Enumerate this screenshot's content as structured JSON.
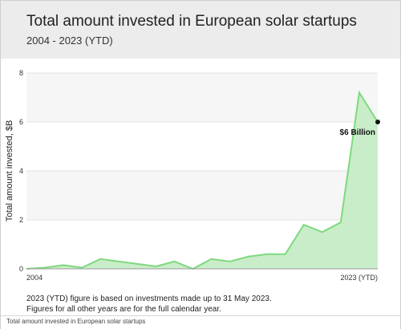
{
  "header": {
    "title": "Total amount invested in European solar startups",
    "subtitle": "2004 - 2023 (YTD)"
  },
  "notes": {
    "line1": "2023 (YTD) figure is based on investments made up to 31 May 2023.",
    "line2": "Figures for all other years are for the full calendar year."
  },
  "caption": "Total amount invested in European solar startups",
  "colors": {
    "area_fill": "#c9edc9",
    "line": "#7ed97e",
    "header_bg": "#ececec",
    "band_light": "#f6f6f6",
    "endpoint": "#111111"
  },
  "chart_data": {
    "type": "area",
    "title": "Total amount invested in European solar startups",
    "subtitle": "2004 - 2023 (YTD)",
    "ylabel": "Total amount invested, $B",
    "xlabel": "",
    "ylim": [
      0,
      8
    ],
    "yticks": [
      0,
      2,
      4,
      6,
      8
    ],
    "x_tick_labels": [
      "2004",
      "2023 (YTD)"
    ],
    "grid": true,
    "series": [
      {
        "x": [
          2004,
          2005,
          2006,
          2007,
          2008,
          2009,
          2010,
          2011,
          2012,
          2013,
          2014,
          2015,
          2016,
          2017,
          2018,
          2019,
          2020,
          2021,
          2022,
          2023
        ],
        "values": [
          0.0,
          0.05,
          0.15,
          0.05,
          0.4,
          0.3,
          0.2,
          0.1,
          0.3,
          0.0,
          0.4,
          0.3,
          0.5,
          0.6,
          0.6,
          1.8,
          1.5,
          1.9,
          7.2,
          6.0
        ]
      }
    ],
    "annotations": [
      {
        "text": "$6 Billion",
        "x": 2023,
        "y": 6.0
      }
    ]
  }
}
